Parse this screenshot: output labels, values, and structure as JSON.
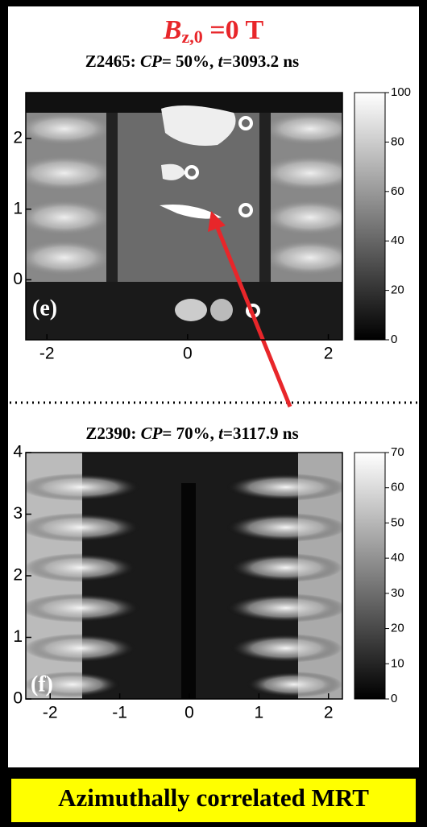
{
  "header": {
    "title": {
      "symbol": "B",
      "subscript": "z,0",
      "rest": " =0 T"
    }
  },
  "chart_data": [
    {
      "type": "heatmap",
      "subtitle": [
        "Z2465: ",
        "CP",
        "= 50%, ",
        "t",
        "=3093.2 ns"
      ],
      "panel_label": "(e)",
      "xlim": [
        -2.3,
        2.2
      ],
      "xticks": [
        -2,
        0,
        2
      ],
      "ylim": [
        -0.85,
        2.65
      ],
      "yticks": [
        0,
        1,
        2
      ],
      "colorbar": {
        "lim": [
          0,
          100
        ],
        "ticks": [
          0,
          20,
          40,
          60,
          80,
          100
        ]
      }
    },
    {
      "type": "heatmap",
      "subtitle": [
        "Z2390: ",
        "CP",
        "= 70%, ",
        "t",
        "=3117.9 ns"
      ],
      "panel_label": "(f)",
      "xlim": [
        -2.35,
        2.2
      ],
      "xticks": [
        -2,
        -1,
        0,
        1,
        2
      ],
      "ylim": [
        0,
        4
      ],
      "yticks": [
        0,
        1,
        2,
        3,
        4
      ],
      "colorbar": {
        "lim": [
          0,
          70
        ],
        "ticks": [
          0,
          10,
          20,
          30,
          40,
          50,
          60,
          70
        ]
      }
    }
  ],
  "footer": {
    "caption": "Azimuthally correlated MRT"
  }
}
